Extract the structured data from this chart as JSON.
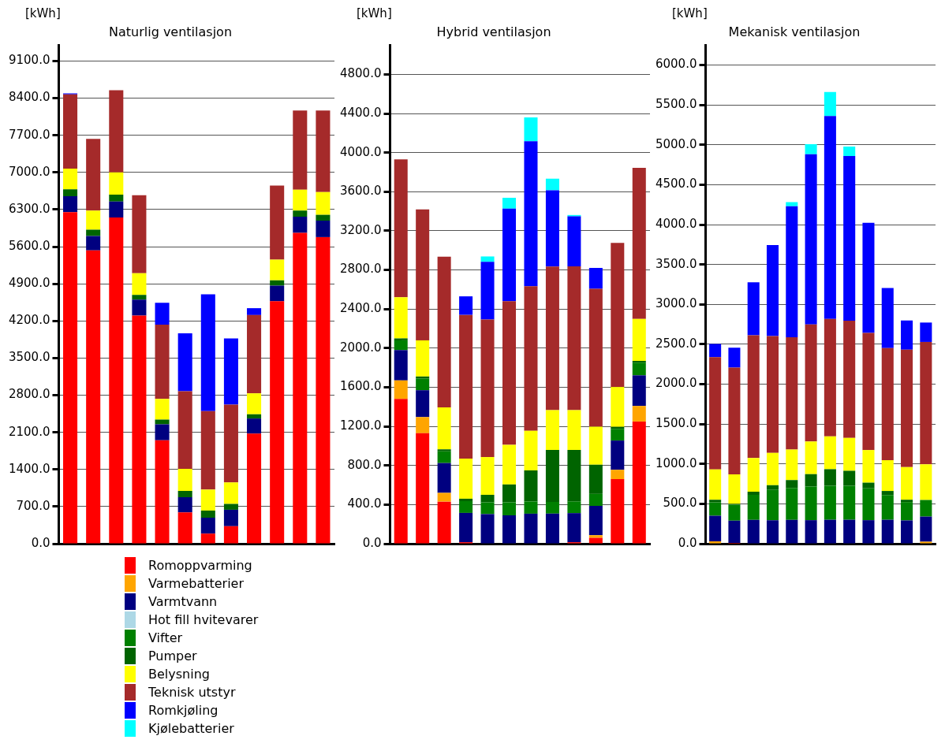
{
  "chart_data": [
    {
      "type": "bar",
      "title": "Naturlig ventilasjon",
      "ylabel": "[kWh]",
      "stacked": true,
      "grid": "y",
      "tick_labels": "y",
      "legend": "bottom",
      "categories": [
        null,
        null,
        null,
        null,
        null,
        null,
        null,
        null,
        null,
        null,
        null,
        null
      ],
      "ylim": [
        0,
        9400
      ],
      "yticks": [
        {
          "value": 0,
          "label": "0.0"
        },
        {
          "value": 700,
          "label": "700.0"
        },
        {
          "value": 1400,
          "label": "1400.0"
        },
        {
          "value": 2100,
          "label": "2100.0"
        },
        {
          "value": 2800,
          "label": "2800.0"
        },
        {
          "value": 3500,
          "label": "3500.0"
        },
        {
          "value": 4200,
          "label": "4200.0"
        },
        {
          "value": 4900,
          "label": "4900.0"
        },
        {
          "value": 5600,
          "label": "5600.0"
        },
        {
          "value": 6300,
          "label": "6300.0"
        },
        {
          "value": 7000,
          "label": "7000.0"
        },
        {
          "value": 7700,
          "label": "7700.0"
        },
        {
          "value": 8400,
          "label": "8400.0"
        },
        {
          "value": 9100,
          "label": "9100.0"
        }
      ],
      "series": [
        {
          "name": "Romoppvarming",
          "color": "#ff0000",
          "values": [
            6250,
            5530,
            6150,
            4300,
            1950,
            590,
            190,
            330,
            2075,
            4570,
            5860,
            5780
          ]
        },
        {
          "name": "Varmebatterier",
          "color": "#ffa500",
          "values": [
            0,
            0,
            0,
            0,
            0,
            0,
            0,
            0,
            0,
            0,
            0,
            0
          ]
        },
        {
          "name": "Varmtvann",
          "color": "#000080",
          "values": [
            300,
            270,
            300,
            300,
            300,
            285,
            300,
            310,
            285,
            295,
            305,
            310
          ]
        },
        {
          "name": "Hot fill hvitevarer",
          "color": "#add8e6",
          "values": [
            0,
            0,
            0,
            0,
            0,
            0,
            0,
            0,
            0,
            0,
            0,
            0
          ]
        },
        {
          "name": "Vifter",
          "color": "#008000",
          "values": [
            0,
            0,
            0,
            0,
            0,
            0,
            0,
            0,
            0,
            0,
            0,
            0
          ]
        },
        {
          "name": "Pumper",
          "color": "#006400",
          "values": [
            130,
            120,
            130,
            90,
            90,
            120,
            135,
            110,
            80,
            100,
            115,
            110
          ]
        },
        {
          "name": "Belysning",
          "color": "#ffff00",
          "values": [
            390,
            360,
            420,
            410,
            390,
            415,
            395,
            405,
            395,
            390,
            395,
            430
          ]
        },
        {
          "name": "Teknisk utstyr",
          "color": "#a52a2a",
          "values": [
            1400,
            1350,
            1550,
            1470,
            1400,
            1465,
            1480,
            1465,
            1475,
            1395,
            1490,
            1535
          ]
        },
        {
          "name": "Romkjøling",
          "color": "#0000ff",
          "values": [
            20,
            0,
            0,
            0,
            410,
            1090,
            2200,
            1250,
            130,
            0,
            0,
            0
          ]
        },
        {
          "name": "Kjølebatterier",
          "color": "#00ffff",
          "values": [
            0,
            0,
            0,
            0,
            0,
            0,
            0,
            0,
            0,
            0,
            0,
            0
          ]
        }
      ]
    },
    {
      "type": "bar",
      "title": "Hybrid ventilasjon",
      "ylabel": "[kWh]",
      "stacked": true,
      "grid": "y",
      "tick_labels": "y",
      "categories": [
        null,
        null,
        null,
        null,
        null,
        null,
        null,
        null,
        null,
        null,
        null,
        null
      ],
      "ylim": [
        0,
        5100
      ],
      "yticks": [
        {
          "value": 0,
          "label": "0.0"
        },
        {
          "value": 400,
          "label": "400.0"
        },
        {
          "value": 800,
          "label": "800.0"
        },
        {
          "value": 1200,
          "label": "1200.0"
        },
        {
          "value": 1600,
          "label": "1600.0"
        },
        {
          "value": 2000,
          "label": "2000.0"
        },
        {
          "value": 2400,
          "label": "2400.0"
        },
        {
          "value": 2800,
          "label": "2800.0"
        },
        {
          "value": 3200,
          "label": "3200.0"
        },
        {
          "value": 3600,
          "label": "3600.0"
        },
        {
          "value": 4000,
          "label": "4000.0"
        },
        {
          "value": 4400,
          "label": "4400.0"
        },
        {
          "value": 4800,
          "label": "4800.0"
        }
      ],
      "series": [
        {
          "color": "#ff0000",
          "values": [
            1480,
            1130,
            430,
            15,
            null,
            null,
            0,
            null,
            15,
            60,
            660,
            1250
          ]
        },
        {
          "color": "#ffa500",
          "values": [
            190,
            165,
            90,
            0,
            0,
            0,
            0,
            0,
            0,
            27,
            96,
            159
          ]
        },
        {
          "color": "#000080",
          "values": [
            310,
            275,
            305,
            300,
            303,
            290,
            307,
            308,
            298,
            300,
            299,
            313
          ]
        },
        {
          "color": "#008000",
          "values": [
            100,
            120,
            120,
            120,
            120,
            133,
            125,
            119,
            119,
            122,
            120,
            130
          ]
        },
        {
          "color": "#006400",
          "values": [
            20,
            20,
            20,
            25,
            77,
            183,
            318,
            532,
            527,
            299,
            20,
            18
          ]
        },
        {
          "color": "#ffff00",
          "values": [
            420,
            370,
            430,
            410,
            386,
            405,
            405,
            408,
            408,
            389,
            408,
            429
          ]
        },
        {
          "color": "#a52a2a",
          "values": [
            1410,
            1340,
            1540,
            1470,
            1407,
            1470,
            1478,
            1468,
            1470,
            1410,
            1473,
            1545
          ]
        },
        {
          "color": "#0000ff",
          "values": [
            0,
            0,
            0,
            190,
            590,
            946,
            1484,
            779,
            511,
            214,
            0,
            0
          ]
        },
        {
          "color": "#00ffff",
          "values": [
            0,
            0,
            0,
            0,
            55,
            111,
            243,
            119,
            14,
            0,
            0,
            0
          ]
        }
      ]
    },
    {
      "type": "bar",
      "title": "Mekanisk ventilasjon",
      "ylabel": "[kWh]",
      "stacked": true,
      "grid": "y",
      "tick_labels": "y",
      "categories": [
        null,
        null,
        null,
        null,
        null,
        null,
        null,
        null,
        null,
        null,
        null,
        null
      ],
      "ylim": [
        0,
        6250
      ],
      "yticks": [
        {
          "value": 0,
          "label": "0.0"
        },
        {
          "value": 500,
          "label": "500.0"
        },
        {
          "value": 1000,
          "label": "1000.0"
        },
        {
          "value": 1500,
          "label": "1500.0"
        },
        {
          "value": 2000,
          "label": "2000.0"
        },
        {
          "value": 2500,
          "label": "2500.0"
        },
        {
          "value": 3000,
          "label": "3000.0"
        },
        {
          "value": 3500,
          "label": "3500.0"
        },
        {
          "value": 4000,
          "label": "4000.0"
        },
        {
          "value": 4500,
          "label": "4500.0"
        },
        {
          "value": 5000,
          "label": "5000.0"
        },
        {
          "value": 5500,
          "label": "5500.0"
        },
        {
          "value": 6000,
          "label": "6000.0"
        }
      ],
      "series": [
        {
          "color": "#ff0000",
          "values": [
            0,
            10,
            0,
            0,
            0,
            0,
            0,
            0,
            0,
            0,
            0,
            0
          ]
        },
        {
          "color": "#ffa500",
          "values": [
            30,
            0,
            0,
            0,
            0,
            0,
            0,
            0,
            0,
            0,
            0,
            25
          ]
        },
        {
          "color": "#000080",
          "values": [
            320,
            279,
            300,
            295,
            300,
            295,
            300,
            300,
            295,
            300,
            292,
            315
          ]
        },
        {
          "color": "#008000",
          "values": [
            169,
            200,
            313,
            379,
            400,
            421,
            426,
            426,
            399,
            310,
            230,
            208
          ]
        },
        {
          "color": "#006400",
          "values": [
            32,
            10,
            39,
            59,
            98,
            156,
            208,
            188,
            71,
            51,
            29,
            0
          ]
        },
        {
          "color": "#ffff00",
          "values": [
            380,
            370,
            421,
            405,
            382,
            409,
            411,
            412,
            409,
            386,
            409,
            447
          ]
        },
        {
          "color": "#a52a2a",
          "values": [
            1407,
            1339,
            1540,
            1465,
            1407,
            1468,
            1472,
            1469,
            1468,
            1404,
            1472,
            1534
          ]
        },
        {
          "color": "#0000ff",
          "values": [
            165,
            249,
            664,
            1141,
            1643,
            2133,
            2544,
            2064,
            1380,
            754,
            366,
            243
          ]
        },
        {
          "color": "#00ffff",
          "values": [
            0,
            0,
            0,
            0,
            52,
            126,
            302,
            120,
            0,
            0,
            0,
            0
          ]
        }
      ]
    }
  ]
}
